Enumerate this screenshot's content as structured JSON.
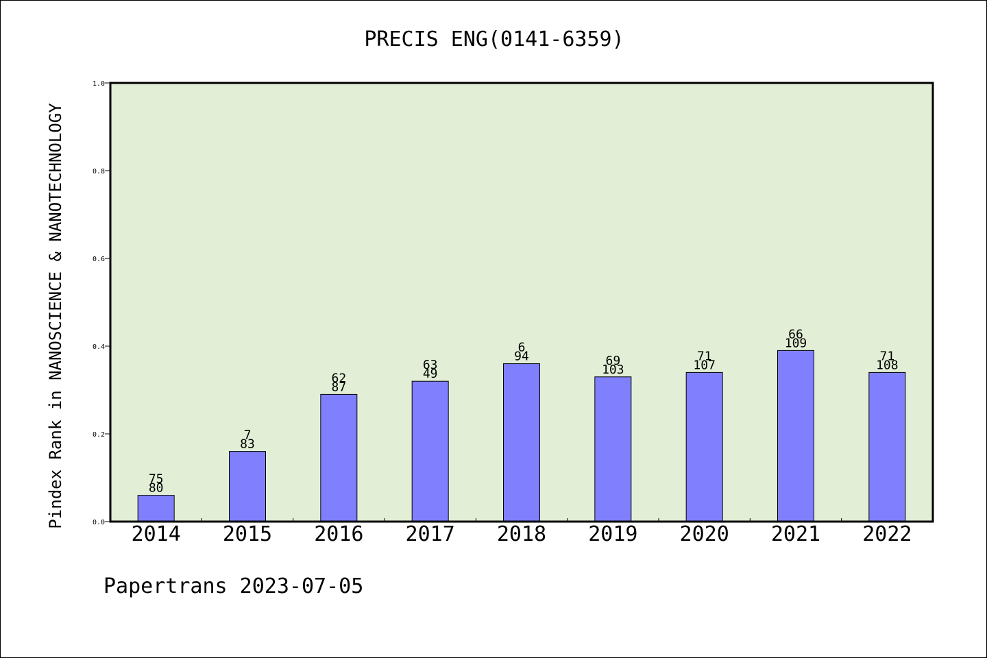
{
  "chart_data": {
    "type": "bar",
    "title": "PRECIS ENG(0141-6359)",
    "xlabel": "",
    "ylabel": "Pindex Rank in NANOSCIENCE & NANOTECHNOLOGY",
    "ylim": [
      0,
      1.0
    ],
    "yticks": [
      "0.0",
      "0.2",
      "0.4",
      "0.6",
      "0.8",
      "1.0"
    ],
    "categories": [
      "2014",
      "2015",
      "2016",
      "2017",
      "2018",
      "2019",
      "2020",
      "2021",
      "2022"
    ],
    "values": [
      0.06,
      0.16,
      0.29,
      0.32,
      0.36,
      0.33,
      0.34,
      0.39,
      0.34
    ],
    "labels_top": [
      "75",
      "7",
      "62",
      "63",
      "6",
      "69",
      "71",
      "66",
      "71"
    ],
    "labels_bottom": [
      "80",
      "83",
      "87",
      "49",
      "94",
      "103",
      "107",
      "109",
      "108"
    ],
    "grid": false,
    "colors": {
      "bar": "#8080ff",
      "plot_bg": "#e2efd6",
      "bar_edge": "#000000"
    }
  },
  "footer": {
    "text": "Papertrans 2023-07-05"
  }
}
